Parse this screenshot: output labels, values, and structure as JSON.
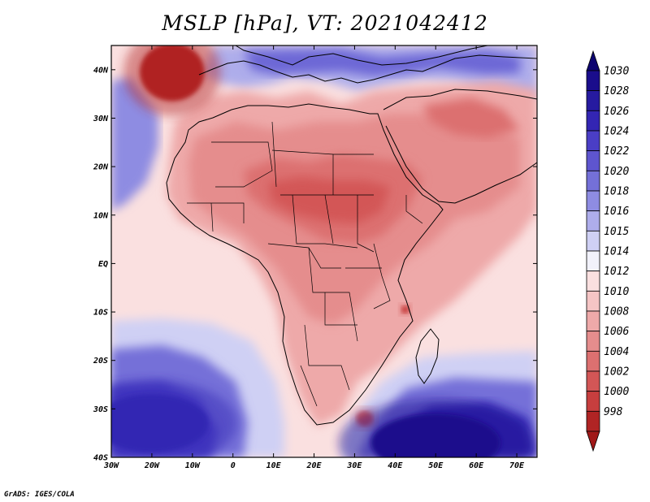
{
  "title": "MSLP [hPa], VT: 2021042412",
  "credit": "GrADS: IGES/COLA",
  "map": {
    "lon_range": [
      -30,
      75
    ],
    "lat_range": [
      -40,
      45
    ],
    "lon_ticks": [
      {
        "value": -30,
        "label": "30W"
      },
      {
        "value": -20,
        "label": "20W"
      },
      {
        "value": -10,
        "label": "10W"
      },
      {
        "value": 0,
        "label": "0"
      },
      {
        "value": 10,
        "label": "10E"
      },
      {
        "value": 20,
        "label": "20E"
      },
      {
        "value": 30,
        "label": "30E"
      },
      {
        "value": 40,
        "label": "40E"
      },
      {
        "value": 50,
        "label": "50E"
      },
      {
        "value": 60,
        "label": "60E"
      },
      {
        "value": 70,
        "label": "70E"
      }
    ],
    "lat_ticks": [
      {
        "value": 40,
        "label": "40N"
      },
      {
        "value": 30,
        "label": "30N"
      },
      {
        "value": 20,
        "label": "20N"
      },
      {
        "value": 10,
        "label": "10N"
      },
      {
        "value": 0,
        "label": "EQ"
      },
      {
        "value": -10,
        "label": "10S"
      },
      {
        "value": -20,
        "label": "20S"
      },
      {
        "value": -30,
        "label": "30S"
      },
      {
        "value": -40,
        "label": "40S"
      }
    ]
  },
  "colorbar": {
    "levels": [
      {
        "label": "1030",
        "color": "#1a0d8c"
      },
      {
        "label": "1028",
        "color": "#261aa0"
      },
      {
        "label": "1026",
        "color": "#3325b3"
      },
      {
        "label": "1024",
        "color": "#4a3ec6"
      },
      {
        "label": "1022",
        "color": "#5e55cf"
      },
      {
        "label": "1020",
        "color": "#7470d8"
      },
      {
        "label": "1018",
        "color": "#8e8ce2"
      },
      {
        "label": "1016",
        "color": "#aeadeb"
      },
      {
        "label": "1015",
        "color": "#cfd0f4"
      },
      {
        "label": "1014",
        "color": "#f2f2fb"
      },
      {
        "label": "1012",
        "color": "#fae0e0"
      },
      {
        "label": "1010",
        "color": "#f5c5c5"
      },
      {
        "label": "1008",
        "color": "#eea9a9"
      },
      {
        "label": "1006",
        "color": "#e58d8d"
      },
      {
        "label": "1004",
        "color": "#dc7070"
      },
      {
        "label": "1002",
        "color": "#d35656"
      },
      {
        "label": "1000",
        "color": "#c73e3e"
      },
      {
        "label": "998",
        "color": "#b02424"
      }
    ],
    "max_color": "#0e0570",
    "min_color": "#a01818"
  },
  "features": [
    {
      "name": "azores-high",
      "lon": -15,
      "lat": 39.5,
      "rx": 8,
      "ry": 6,
      "color": "#b02424"
    },
    {
      "name": "mozambique-channel-low",
      "lon": 42.5,
      "lat": -9.5,
      "rx": 1,
      "ry": 0.8,
      "color": "#c73e3e"
    },
    {
      "name": "natal-coast-low",
      "lon": 32.5,
      "lat": -32,
      "rx": 2,
      "ry": 1.5,
      "color": "#d35656"
    },
    {
      "name": "south-atlantic-high",
      "lon": -20,
      "lat": -33,
      "rx": 14,
      "ry": 6,
      "color": "#3325b3"
    },
    {
      "name": "south-indian-high",
      "lon": 50,
      "lat": -37,
      "rx": 16,
      "ry": 6,
      "color": "#1a0d8c"
    }
  ]
}
